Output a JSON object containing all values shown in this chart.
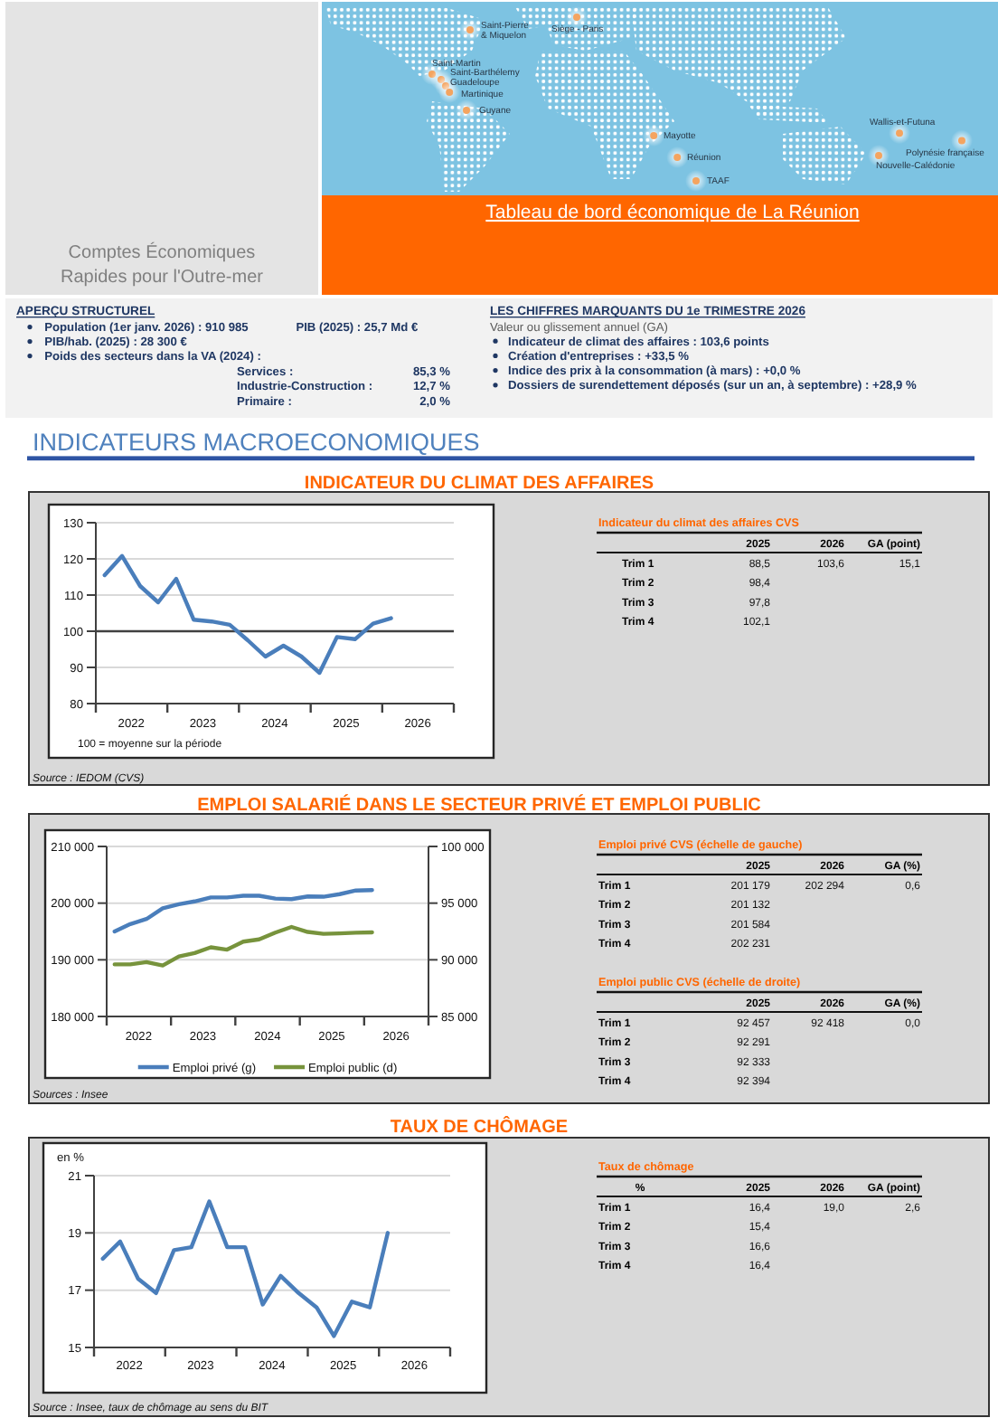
{
  "chart_data": [
    {
      "type": "other",
      "title": "Tableau de bord économique de La Réunion",
      "subtitle": "Comptes Économiques Rapides pour l'Outre-mer",
      "annotations": [
        "Saint-Pierre & Miquelon",
        "Siège - Paris",
        "Saint-Martin",
        "Saint-Barthélemy",
        "Guadeloupe",
        "Martinique",
        "Guyane",
        "Mayotte",
        "Réunion",
        "TAAF",
        "Wallis-et-Futuna",
        "Polynésie française",
        "Nouvelle-Calédonie"
      ]
    },
    {
      "type": "other",
      "title": "APERÇU STRUCTUREL",
      "annotations": [
        "Population (1er janv. 2026) : 910 985",
        "PIB (2025) : 25,7 Md €",
        "PIB/hab. (2025) : 28 300 €",
        "Poids des secteurs dans la VA (2024) :",
        "Services :",
        "85,3 %",
        "Industrie-Construction :",
        "12,7 %",
        "Primaire :",
        "2,0 %"
      ]
    },
    {
      "type": "other",
      "title": "LES CHIFFRES MARQUANTS DU 1e TRIMESTRE 2026",
      "subtitle": "Valeur ou glissement annuel (GA)",
      "annotations": [
        "Indicateur de climat des affaires : 103,6 points",
        "Création d'entreprises : +33,5 %",
        "Indice des prix à la consommation (à mars) : +0,0 %",
        "Dossiers de surendettement déposés (sur un an, à septembre) : +28,9 %"
      ]
    },
    {
      "type": "other",
      "title": "INDICATEURS MACROECONOMIQUES"
    },
    {
      "type": "line",
      "title": "INDICATEUR DU CLIMAT DES AFFAIRES",
      "x": [
        "2022-02-15",
        "2022-05-15",
        "2022-08-15",
        "2022-11-15",
        "2023-02-15",
        "2023-05-15",
        "2023-08-15",
        "2023-11-15",
        "2024-02-15",
        "2024-05-15",
        "2024-08-15",
        "2024-11-15",
        "2025-02-15",
        "2025-05-15",
        "2025-08-15",
        "2025-11-15",
        "2026-02-15"
      ],
      "values": [
        115.5,
        120.8,
        112.5,
        108,
        114.5,
        103.2,
        102.7,
        101.8,
        97.5,
        93,
        96,
        93,
        88.5,
        98.4,
        97.8,
        102.1,
        103.6
      ],
      "color": "#4a7ebb",
      "xlim": [
        "2022-01-01",
        "2027-01-01"
      ],
      "xticks": [
        {
          "value": "2022-01-01",
          "label": null
        },
        {
          "value": "2022-07-01",
          "label": "2022"
        },
        {
          "value": "2023-01-01",
          "label": null
        },
        {
          "value": "2023-07-01",
          "label": "2023"
        },
        {
          "value": "2024-01-01",
          "label": null
        },
        {
          "value": "2024-07-01",
          "label": "2024"
        },
        {
          "value": "2025-01-01",
          "label": null
        },
        {
          "value": "2025-07-01",
          "label": "2025"
        },
        {
          "value": "2026-01-01",
          "label": null
        },
        {
          "value": "2026-07-01",
          "label": "2026"
        },
        {
          "value": "2027-01-01",
          "label": null
        }
      ],
      "ylim": [
        80,
        130
      ],
      "yticks": [
        80,
        90,
        100,
        110,
        120,
        130
      ],
      "grid": "y",
      "ref_lines": [
        {
          "axis": "y",
          "value": 100,
          "color": "#404040"
        }
      ],
      "annotations": [
        "100 = moyenne sur la période",
        "Source : IEDOM (CVS)"
      ]
    },
    {
      "type": "other",
      "title": "Indicateur du climat des affaires CVS",
      "categories": [
        "Trim 1",
        "Trim 2",
        "Trim 3",
        "Trim 4"
      ],
      "series": [
        {
          "name": "2025",
          "values": [
            88.5,
            98.4,
            97.8,
            102.1
          ],
          "value_labels": [
            "88,5",
            "98,4",
            "97,8",
            "102,1"
          ]
        },
        {
          "name": "2026",
          "values": [
            103.6,
            null,
            null,
            null
          ],
          "value_labels": [
            "103,6",
            null,
            null,
            null
          ]
        },
        {
          "name": "GA (point)",
          "values": [
            15.1,
            null,
            null,
            null
          ],
          "value_labels": [
            "15,1",
            null,
            null,
            null
          ]
        }
      ]
    },
    {
      "type": "line",
      "title": "EMPLOI SALARIÉ DANS LE SECTEUR PRIVÉ ET EMPLOI PUBLIC",
      "x": [
        "2022-02-15",
        "2022-05-15",
        "2022-08-15",
        "2022-11-15",
        "2023-02-15",
        "2023-05-15",
        "2023-08-15",
        "2023-11-15",
        "2024-02-15",
        "2024-05-15",
        "2024-08-15",
        "2024-11-15",
        "2025-02-15",
        "2025-05-15",
        "2025-08-15",
        "2025-11-15",
        "2026-02-15"
      ],
      "series": [
        {
          "name": "Emploi privé (g)",
          "color": "#4a7ebb",
          "values": [
            195000,
            196300,
            197200,
            199100,
            199800,
            200300,
            201000,
            201000,
            201300,
            201300,
            200800,
            200700,
            201179,
            201132,
            201584,
            202231,
            202294
          ]
        },
        {
          "name": "Emploi public (d)",
          "color": "#77933c",
          "axis": "y2",
          "values": [
            89600,
            89600,
            89800,
            89500,
            90300,
            90600,
            91100,
            90900,
            91600,
            91800,
            92400,
            92900,
            92457,
            92291,
            92333,
            92394,
            92418
          ]
        }
      ],
      "xlim": [
        "2022-01-01",
        "2027-01-01"
      ],
      "xticks": [
        {
          "value": "2022-01-01",
          "label": null
        },
        {
          "value": "2022-07-01",
          "label": "2022"
        },
        {
          "value": "2023-01-01",
          "label": null
        },
        {
          "value": "2023-07-01",
          "label": "2023"
        },
        {
          "value": "2024-01-01",
          "label": null
        },
        {
          "value": "2024-07-01",
          "label": "2024"
        },
        {
          "value": "2025-01-01",
          "label": null
        },
        {
          "value": "2025-07-01",
          "label": "2025"
        },
        {
          "value": "2026-01-01",
          "label": null
        },
        {
          "value": "2026-07-01",
          "label": "2026"
        },
        {
          "value": "2027-01-01",
          "label": null
        }
      ],
      "ylim": [
        180000,
        210000
      ],
      "yticks": [
        {
          "value": 180000,
          "label": "180 000"
        },
        {
          "value": 190000,
          "label": "190 000"
        },
        {
          "value": 200000,
          "label": "200 000"
        },
        {
          "value": 210000,
          "label": "210 000"
        }
      ],
      "y2lim": [
        85000,
        100000
      ],
      "y2ticks": [
        {
          "value": 85000,
          "label": "85 000"
        },
        {
          "value": 90000,
          "label": "90 000"
        },
        {
          "value": 95000,
          "label": "95 000"
        },
        {
          "value": 100000,
          "label": "100 000"
        }
      ],
      "grid": "y",
      "legend": "bottom",
      "annotations": [
        "Sources : Insee"
      ]
    },
    {
      "type": "other",
      "title": "Emploi privé CVS (échelle de gauche)",
      "categories": [
        "Trim 1",
        "Trim 2",
        "Trim 3",
        "Trim 4"
      ],
      "series": [
        {
          "name": "2025",
          "values": [
            201179,
            201132,
            201584,
            202231
          ],
          "value_labels": [
            "201 179",
            "201 132",
            "201 584",
            "202 231"
          ]
        },
        {
          "name": "2026",
          "values": [
            202294,
            null,
            null,
            null
          ],
          "value_labels": [
            "202 294",
            null,
            null,
            null
          ]
        },
        {
          "name": "GA (%)",
          "values": [
            0.6,
            null,
            null,
            null
          ],
          "value_labels": [
            "0,6",
            null,
            null,
            null
          ]
        }
      ]
    },
    {
      "type": "other",
      "title": "Emploi public CVS (échelle de droite)",
      "categories": [
        "Trim 1",
        "Trim 2",
        "Trim 3",
        "Trim 4"
      ],
      "series": [
        {
          "name": "2025",
          "values": [
            92457,
            92291,
            92333,
            92394
          ],
          "value_labels": [
            "92 457",
            "92 291",
            "92 333",
            "92 394"
          ]
        },
        {
          "name": "2026",
          "values": [
            92418,
            null,
            null,
            null
          ],
          "value_labels": [
            "92 418",
            null,
            null,
            null
          ]
        },
        {
          "name": "GA (%)",
          "values": [
            0.0,
            null,
            null,
            null
          ],
          "value_labels": [
            "0,0",
            null,
            null,
            null
          ]
        }
      ]
    },
    {
      "type": "line",
      "title": "TAUX DE CHÔMAGE",
      "ylabel": "en %",
      "x": [
        "2022-02-15",
        "2022-05-15",
        "2022-08-15",
        "2022-11-15",
        "2023-02-15",
        "2023-05-15",
        "2023-08-15",
        "2023-11-15",
        "2024-02-15",
        "2024-05-15",
        "2024-08-15",
        "2024-11-15",
        "2025-02-15",
        "2025-05-15",
        "2025-08-15",
        "2025-11-15",
        "2026-02-15"
      ],
      "values": [
        18.1,
        18.7,
        17.4,
        16.9,
        18.4,
        18.5,
        20.1,
        18.5,
        18.5,
        16.5,
        17.5,
        16.9,
        16.4,
        15.4,
        16.6,
        16.4,
        19.0
      ],
      "color": "#4a7ebb",
      "xlim": [
        "2022-01-01",
        "2027-01-01"
      ],
      "xticks": [
        {
          "value": "2022-01-01",
          "label": null
        },
        {
          "value": "2022-07-01",
          "label": "2022"
        },
        {
          "value": "2023-01-01",
          "label": null
        },
        {
          "value": "2023-07-01",
          "label": "2023"
        },
        {
          "value": "2024-01-01",
          "label": null
        },
        {
          "value": "2024-07-01",
          "label": "2024"
        },
        {
          "value": "2025-01-01",
          "label": null
        },
        {
          "value": "2025-07-01",
          "label": "2025"
        },
        {
          "value": "2026-01-01",
          "label": null
        },
        {
          "value": "2026-07-01",
          "label": "2026"
        },
        {
          "value": "2027-01-01",
          "label": null
        }
      ],
      "ylim": [
        15,
        21
      ],
      "yticks": [
        15,
        17,
        19,
        21
      ],
      "grid": "y",
      "annotations": [
        "Source : Insee, taux de chômage au sens du BIT"
      ]
    },
    {
      "type": "other",
      "title": "Taux de chômage",
      "xlabel": "%",
      "categories": [
        "Trim 1",
        "Trim 2",
        "Trim 3",
        "Trim 4"
      ],
      "series": [
        {
          "name": "2025",
          "values": [
            16.4,
            15.4,
            16.6,
            16.4
          ],
          "value_labels": [
            "16,4",
            "15,4",
            "16,6",
            "16,4"
          ]
        },
        {
          "name": "2026",
          "values": [
            19.0,
            null,
            null,
            null
          ],
          "value_labels": [
            "19,0",
            null,
            null,
            null
          ]
        },
        {
          "name": "GA (point)",
          "values": [
            2.6,
            null,
            null,
            null
          ],
          "value_labels": [
            "2,6",
            null,
            null,
            null
          ]
        }
      ]
    }
  ]
}
